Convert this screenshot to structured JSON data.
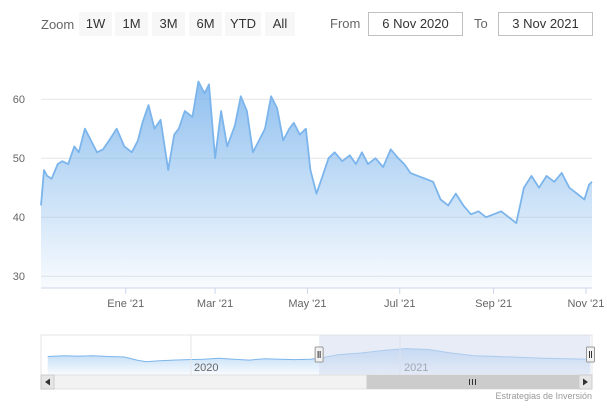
{
  "toolbar": {
    "zoom_label": "Zoom",
    "zoom_buttons": [
      "1W",
      "1M",
      "3M",
      "6M",
      "YTD",
      "All"
    ],
    "from_label": "From",
    "from_value": "6 Nov 2020",
    "to_label": "To",
    "to_value": "3 Nov 2021"
  },
  "navigator": {
    "year_labels": [
      "2020",
      "2021"
    ]
  },
  "credits": "Estrategias de Inversión",
  "colors": {
    "line": "#7cb5ec",
    "area_top": "#7cb5ec",
    "grid": "#e6e6e6",
    "mask": "#d3ddf0",
    "scrollbar": "#f2f2f2"
  },
  "chart_data": {
    "type": "area",
    "title": "",
    "xlabel": "",
    "ylabel": "",
    "ylim": [
      28,
      68
    ],
    "yticks": [
      30,
      40,
      50,
      60
    ],
    "xlim": [
      "2020-11-06",
      "2021-11-05"
    ],
    "xticks": [
      {
        "date": "2021-01-01",
        "label": "Ene '21"
      },
      {
        "date": "2021-03-01",
        "label": "Mar '21"
      },
      {
        "date": "2021-05-01",
        "label": "May '21"
      },
      {
        "date": "2021-07-01",
        "label": "Jul '21"
      },
      {
        "date": "2021-09-01",
        "label": "Sep '21"
      },
      {
        "date": "2021-11-01",
        "label": "Nov '21"
      }
    ],
    "grid": true,
    "x": [
      "2020-11-06",
      "2020-11-08",
      "2020-11-10",
      "2020-11-13",
      "2020-11-17",
      "2020-11-20",
      "2020-11-24",
      "2020-11-28",
      "2020-12-01",
      "2020-12-05",
      "2020-12-09",
      "2020-12-13",
      "2020-12-17",
      "2020-12-21",
      "2020-12-26",
      "2020-12-31",
      "2021-01-05",
      "2021-01-09",
      "2021-01-12",
      "2021-01-16",
      "2021-01-20",
      "2021-01-24",
      "2021-01-29",
      "2021-02-02",
      "2021-02-05",
      "2021-02-09",
      "2021-02-14",
      "2021-02-18",
      "2021-02-22",
      "2021-02-25",
      "2021-03-01",
      "2021-03-05",
      "2021-03-09",
      "2021-03-14",
      "2021-03-18",
      "2021-03-22",
      "2021-03-26",
      "2021-03-30",
      "2021-04-03",
      "2021-04-07",
      "2021-04-11",
      "2021-04-15",
      "2021-04-19",
      "2021-04-22",
      "2021-04-26",
      "2021-04-30",
      "2021-05-03",
      "2021-05-07",
      "2021-05-11",
      "2021-05-15",
      "2021-05-19",
      "2021-05-24",
      "2021-05-29",
      "2021-06-02",
      "2021-06-06",
      "2021-06-10",
      "2021-06-15",
      "2021-06-20",
      "2021-06-25",
      "2021-06-30",
      "2021-07-04",
      "2021-07-08",
      "2021-07-13",
      "2021-07-18",
      "2021-07-23",
      "2021-07-28",
      "2021-08-02",
      "2021-08-07",
      "2021-08-12",
      "2021-08-17",
      "2021-08-22",
      "2021-08-27",
      "2021-09-01",
      "2021-09-06",
      "2021-09-11",
      "2021-09-16",
      "2021-09-21",
      "2021-09-26",
      "2021-10-01",
      "2021-10-06",
      "2021-10-11",
      "2021-10-16",
      "2021-10-21",
      "2021-10-26",
      "2021-10-31",
      "2021-11-03",
      "2021-11-05"
    ],
    "series": [
      {
        "values": [
          42,
          48,
          47,
          46.5,
          49,
          49.5,
          49,
          52,
          51,
          55,
          53,
          51,
          51.5,
          53,
          55,
          52,
          51,
          53,
          56,
          59,
          55,
          56.5,
          48,
          54,
          55,
          58,
          57,
          63,
          61,
          62.5,
          50,
          58,
          52,
          55.5,
          60.5,
          58,
          51,
          53,
          55,
          60.5,
          58.5,
          53,
          55,
          56,
          54,
          55,
          48,
          44,
          47,
          50,
          51,
          49.5,
          50.5,
          49,
          51,
          49,
          50,
          48.5,
          51.5,
          50,
          49,
          47.5,
          47,
          46.5,
          46,
          43,
          42,
          44,
          42,
          40.5,
          41,
          40,
          40.5,
          41,
          40,
          39,
          45,
          47,
          45,
          47,
          46,
          47.5,
          45,
          44,
          43,
          45.5,
          46
        ]
      }
    ],
    "navigator": {
      "type": "area",
      "x": [
        "2019-11-10",
        "2019-12-01",
        "2019-12-20",
        "2020-01-10",
        "2020-01-30",
        "2020-02-20",
        "2020-03-08",
        "2020-03-20",
        "2020-04-05",
        "2020-04-25",
        "2020-05-15",
        "2020-06-05",
        "2020-06-25",
        "2020-07-15",
        "2020-08-05",
        "2020-08-25",
        "2020-09-15",
        "2020-10-05",
        "2020-10-25",
        "2020-11-06",
        "2020-12-01",
        "2021-01-01",
        "2021-02-01",
        "2021-03-01",
        "2021-04-01",
        "2021-05-01",
        "2021-06-01",
        "2021-07-01",
        "2021-08-01",
        "2021-09-01",
        "2021-10-01",
        "2021-11-03"
      ],
      "values": [
        49,
        50,
        49.5,
        50,
        49,
        48.5,
        45,
        43,
        44,
        45,
        45.5,
        46,
        47,
        46,
        45,
        46.5,
        46,
        45.5,
        46,
        47,
        51,
        53,
        56,
        58,
        57,
        53,
        50,
        49,
        48,
        47,
        46.5,
        46
      ],
      "selected": [
        "2020-11-06",
        "2021-11-03"
      ],
      "xlim": [
        "2019-11-01",
        "2021-11-05"
      ]
    }
  }
}
